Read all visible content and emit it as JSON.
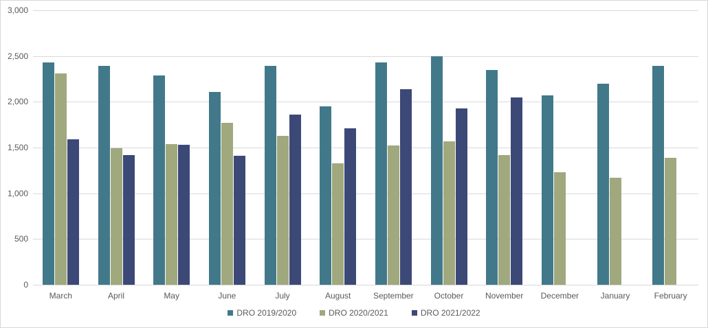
{
  "chart_data": {
    "type": "bar",
    "title": "",
    "xlabel": "",
    "ylabel": "",
    "categories": [
      "March",
      "April",
      "May",
      "June",
      "July",
      "August",
      "September",
      "October",
      "November",
      "December",
      "January",
      "February"
    ],
    "series": [
      {
        "name": "DRO 2019/2020",
        "color": "#41798A",
        "values": [
          2430,
          2390,
          2290,
          2110,
          2390,
          1950,
          2430,
          2500,
          2350,
          2070,
          2200,
          2390
        ]
      },
      {
        "name": "DRO 2020/2021",
        "color": "#A0A87E",
        "values": [
          2310,
          1490,
          1540,
          1770,
          1630,
          1330,
          1520,
          1570,
          1420,
          1230,
          1170,
          1390
        ]
      },
      {
        "name": "DRO 2021/2022",
        "color": "#3C4977",
        "values": [
          1590,
          1420,
          1530,
          1410,
          1860,
          1710,
          2140,
          1930,
          2050,
          0,
          0,
          0
        ]
      }
    ],
    "ylim": [
      0,
      3000
    ],
    "ytick_step": 500,
    "ytick_labels": [
      "0",
      "500",
      "1,000",
      "1,500",
      "2,000",
      "2,500",
      "3,000"
    ],
    "grid": true,
    "legend_position": "bottom",
    "gridline_color": "#D9D9D9",
    "text_color": "#595959",
    "background_color": "#FFFFFF"
  }
}
